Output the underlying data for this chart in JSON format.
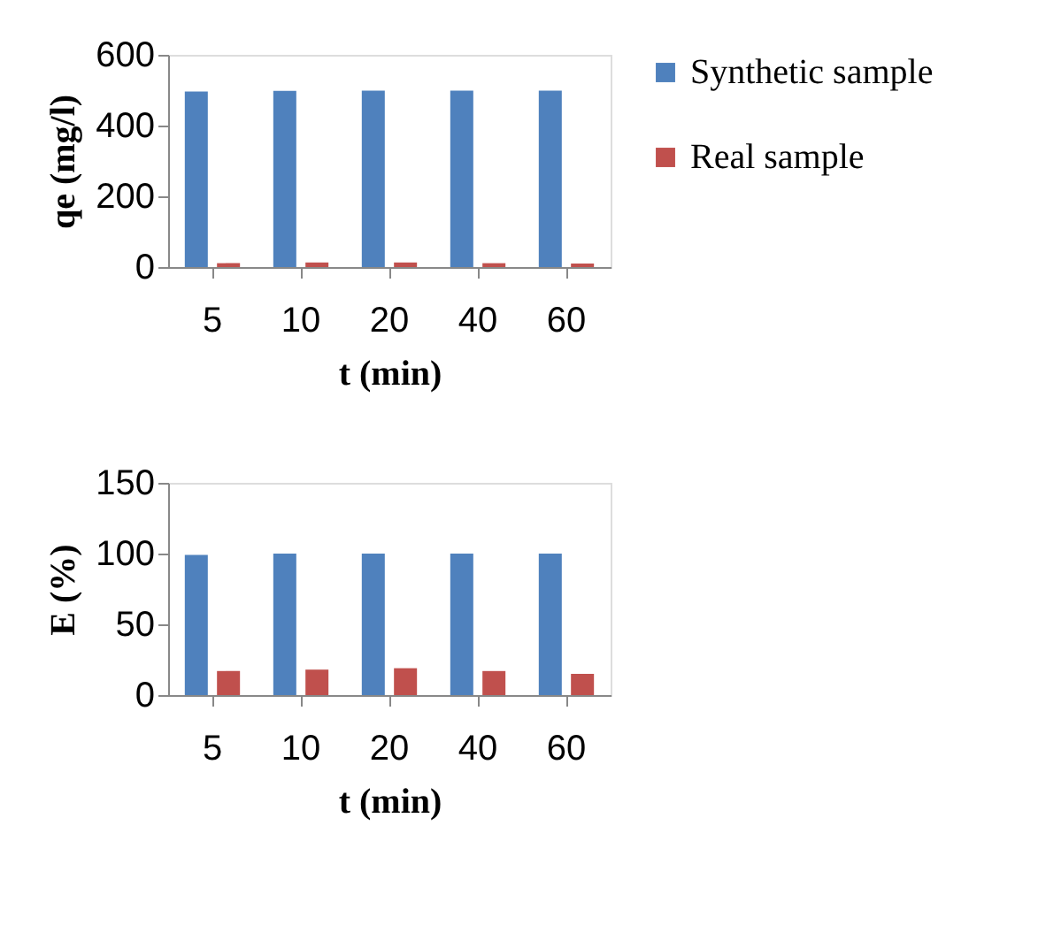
{
  "chart_data": [
    {
      "type": "bar",
      "categories": [
        "5",
        "10",
        "20",
        "40",
        "60"
      ],
      "xlabel": "t (min)",
      "ylabel": "qe (mg/l)",
      "ylim": [
        0,
        600
      ],
      "yticks": [
        0,
        200,
        400,
        600
      ],
      "grid": false,
      "legend": "right",
      "series": [
        {
          "name": "Synthetic sample",
          "color": "#4f81bd",
          "values": [
            496,
            498,
            499,
            499,
            499
          ]
        },
        {
          "name": "Real sample",
          "color": "#c0504d",
          "values": [
            11,
            13,
            13,
            11,
            10
          ]
        }
      ]
    },
    {
      "type": "bar",
      "categories": [
        "5",
        "10",
        "20",
        "40",
        "60"
      ],
      "xlabel": "t (min)",
      "ylabel": "E (%)",
      "ylim": [
        0,
        150
      ],
      "yticks": [
        0,
        50,
        100,
        150
      ],
      "grid": false,
      "legend": "right",
      "series": [
        {
          "name": "Synthetic sample",
          "color": "#4f81bd",
          "values": [
            99,
            100,
            100,
            100,
            100
          ]
        },
        {
          "name": "Real sample",
          "color": "#c0504d",
          "values": [
            17,
            18,
            19,
            17,
            15
          ]
        }
      ]
    }
  ]
}
